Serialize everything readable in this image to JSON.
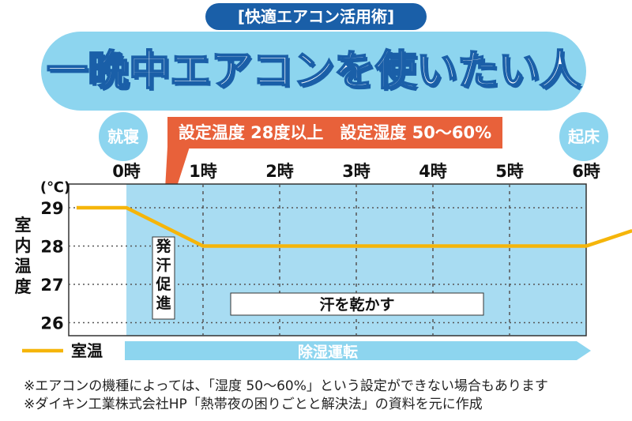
{
  "header": {
    "badge": "[快適エアコン活用術]",
    "title": "一晩中エアコンを使いたい人"
  },
  "markers": {
    "bedtime": "就寝",
    "wakeup": "起床"
  },
  "settings_label": "設定温度 28度以上　設定湿度 50～60%",
  "annotations": {
    "sweat_promotion": "発汗促進",
    "dry_sweat": "汗を乾かす"
  },
  "legend": {
    "room_temp": "室温"
  },
  "dehumidify_label": "除湿運転",
  "footnotes": [
    "※エアコンの機種によっては、「湿度 50～60%」という設定ができない場合もあります",
    "※ダイキン工業株式会社HP「熱帯夜の困りごとと解決法」の資料を元に作成"
  ],
  "colors": {
    "accent_blue": "#1a5fa8",
    "light_blue": "#8dd5ef",
    "band_blue": "#a8dcf2",
    "orange": "#e8613a",
    "line_yellow": "#f5b50a"
  },
  "chart_data": {
    "type": "line",
    "xlabel": "",
    "ylabel": "室内温度",
    "yunit": "(℃)",
    "x_ticks": [
      "0時",
      "1時",
      "2時",
      "3時",
      "4時",
      "5時",
      "6時"
    ],
    "y_ticks": [
      "26",
      "27",
      "28",
      "29"
    ],
    "ylim": [
      26,
      29
    ],
    "grid": true,
    "series": [
      {
        "name": "室温",
        "x": [
          -0.65,
          0,
          1,
          6,
          6.6
        ],
        "y": [
          29,
          29,
          28,
          28,
          28.4
        ]
      }
    ]
  }
}
